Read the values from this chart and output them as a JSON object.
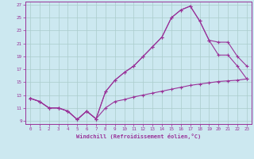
{
  "background_color": "#cce8f0",
  "grid_color": "#aacccc",
  "line_color": "#993399",
  "xlabel": "Windchill (Refroidissement éolien,°C)",
  "xlim": [
    -0.5,
    23.5
  ],
  "ylim": [
    8.5,
    27.5
  ],
  "yticks": [
    9,
    11,
    13,
    15,
    17,
    19,
    21,
    23,
    25,
    27
  ],
  "xticks": [
    0,
    1,
    2,
    3,
    4,
    5,
    6,
    7,
    8,
    9,
    10,
    11,
    12,
    13,
    14,
    15,
    16,
    17,
    18,
    19,
    20,
    21,
    22,
    23
  ],
  "curve1_x": [
    0,
    1,
    2,
    3,
    4,
    5,
    6,
    7,
    8,
    9,
    10,
    11,
    12,
    13,
    14,
    15,
    16,
    17,
    18,
    19,
    20,
    21,
    22,
    23
  ],
  "curve1_y": [
    12.5,
    12.0,
    11.0,
    11.0,
    10.5,
    9.2,
    10.5,
    9.3,
    11.0,
    12.0,
    12.3,
    12.7,
    13.0,
    13.3,
    13.6,
    13.9,
    14.2,
    14.5,
    14.7,
    14.9,
    15.1,
    15.2,
    15.3,
    15.5
  ],
  "curve2_x": [
    0,
    1,
    2,
    3,
    4,
    5,
    6,
    7,
    8,
    9,
    10,
    11,
    12,
    13,
    14,
    15,
    16,
    17,
    18,
    19,
    20,
    21,
    22,
    23
  ],
  "curve2_y": [
    12.5,
    12.0,
    11.0,
    11.0,
    10.5,
    9.2,
    10.5,
    9.3,
    13.5,
    15.3,
    16.5,
    17.5,
    19.0,
    20.5,
    22.0,
    25.0,
    26.2,
    26.8,
    24.5,
    21.5,
    21.2,
    21.2,
    19.0,
    17.5
  ],
  "curve3_x": [
    0,
    1,
    2,
    3,
    4,
    5,
    6,
    7,
    8,
    9,
    10,
    11,
    12,
    13,
    14,
    15,
    16,
    17,
    18,
    19,
    20,
    21,
    22,
    23
  ],
  "curve3_y": [
    12.5,
    12.0,
    11.0,
    11.0,
    10.5,
    9.2,
    10.5,
    9.3,
    13.5,
    15.3,
    16.5,
    17.5,
    19.0,
    20.5,
    22.0,
    25.0,
    26.2,
    26.8,
    24.5,
    21.5,
    19.2,
    19.2,
    17.5,
    15.5
  ]
}
